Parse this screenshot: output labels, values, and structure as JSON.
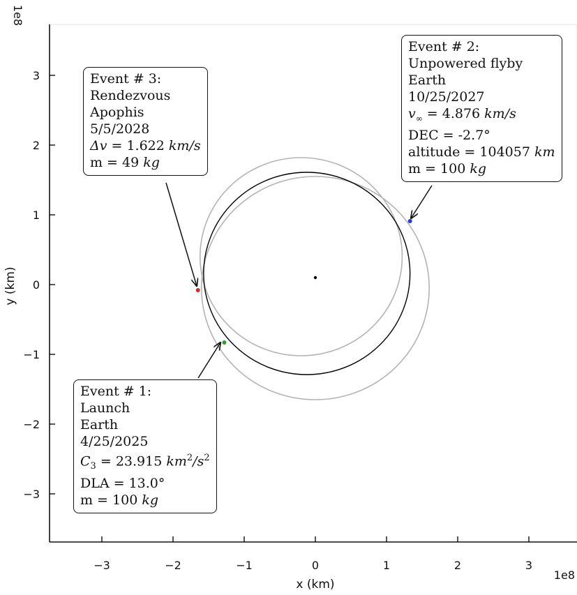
{
  "chart_data": {
    "type": "scatter",
    "title": "",
    "xlabel": "x (km)",
    "ylabel": "y (km)",
    "x_offset_text": "1e8",
    "y_offset_text": "1e8",
    "xlim": [
      -3.7,
      3.7
    ],
    "ylim": [
      -3.7,
      3.7
    ],
    "xticks": [
      {
        "value": -3,
        "label": "−3"
      },
      {
        "value": -2,
        "label": "−2"
      },
      {
        "value": -1,
        "label": "−1"
      },
      {
        "value": 0,
        "label": "0"
      },
      {
        "value": 1,
        "label": "1"
      },
      {
        "value": 2,
        "label": "2"
      },
      {
        "value": 3,
        "label": "3"
      }
    ],
    "yticks": [
      {
        "value": -3,
        "label": "−3"
      },
      {
        "value": -2,
        "label": "−2"
      },
      {
        "value": -1,
        "label": "−1"
      },
      {
        "value": 0,
        "label": "0"
      },
      {
        "value": 1,
        "label": "1"
      },
      {
        "value": 2,
        "label": "2"
      },
      {
        "value": 3,
        "label": "3"
      }
    ],
    "grid": false,
    "orbits": [
      {
        "name": "Earth orbit",
        "color": "#b3b3b3",
        "center": [
          -0.2,
          0.4
        ],
        "radius": 1.42
      },
      {
        "name": "Apophis orbit",
        "color": "#b3b3b3",
        "center": [
          0.0,
          -0.05
        ],
        "radius": 1.6
      },
      {
        "name": "Trajectory",
        "color": "#000000",
        "center": [
          -0.12,
          0.16
        ],
        "radius": 1.45
      }
    ],
    "sun": {
      "x": 0.0,
      "y": 0.1,
      "color": "#000000"
    },
    "events": [
      {
        "id": 1,
        "x": -1.28,
        "y": -0.83,
        "color": "#2ca02c"
      },
      {
        "id": 2,
        "x": 1.33,
        "y": 0.91,
        "color": "#1f3fd6"
      },
      {
        "id": 3,
        "x": -1.65,
        "y": -0.08,
        "color": "#d62728"
      }
    ]
  },
  "annotations": {
    "event1": {
      "title": "Event # 1:",
      "type": "Launch",
      "body": "Earth",
      "date": "4/25/2025",
      "c3_prefix": "C",
      "c3_sub": "3",
      "c3_eq": " = 23.915 ",
      "c3_unit": "km",
      "c3_unit_sup": "2",
      "c3_unit_rest": "/s",
      "c3_unit_sup2": "2",
      "dla": "DLA = 13.0°",
      "mass_prefix": "m = 100 ",
      "mass_unit": "kg"
    },
    "event2": {
      "title": "Event # 2:",
      "type": "Unpowered flyby",
      "body": "Earth",
      "date": "10/25/2027",
      "vinf_symbol": "v",
      "vinf_sub": "∞",
      "vinf_eq": " = 4.876 ",
      "vinf_unit": "km/s",
      "dec": "DEC = -2.7°",
      "alt_prefix": "altitude = 104057 ",
      "alt_unit": "km",
      "mass_prefix": "m = 100 ",
      "mass_unit": "kg"
    },
    "event3": {
      "title": "Event # 3:",
      "type": "Rendezvous",
      "body": "Apophis",
      "date": "5/5/2028",
      "dv_symbol": "Δv",
      "dv_eq": " = 1.622 ",
      "dv_unit": "km/s",
      "mass_prefix": "m = 49 ",
      "mass_unit": "kg"
    }
  }
}
